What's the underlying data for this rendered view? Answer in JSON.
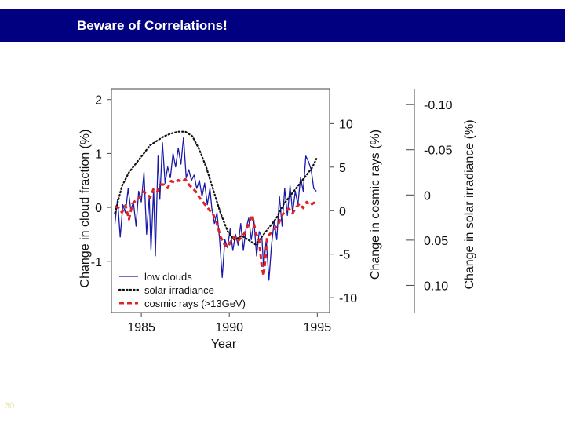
{
  "slide": {
    "title": "Beware of Correlations!",
    "page_number": "30",
    "title_bar_color": "#000080"
  },
  "chart_data": {
    "type": "line",
    "xlabel": "Year",
    "xlim": [
      1983.3,
      1995.7
    ],
    "x_ticks": [
      1985,
      1990,
      1995
    ],
    "axes": {
      "left": {
        "label": "Change in cloud fraction (%)",
        "lim": [
          -1.95,
          2.2
        ],
        "ticks": [
          {
            "value": 2,
            "label": "2"
          },
          {
            "value": 1,
            "label": "1"
          },
          {
            "value": 0,
            "label": "0"
          },
          {
            "value": -1,
            "label": "-1"
          }
        ]
      },
      "right": {
        "label": "Change in cosmic rays (%)",
        "lim": [
          -11.7,
          14.0
        ],
        "ticks": [
          {
            "value": 10,
            "label": "10"
          },
          {
            "value": 5,
            "label": "5"
          },
          {
            "value": 0,
            "label": "0"
          },
          {
            "value": -5,
            "label": "-5"
          },
          {
            "value": -10,
            "label": "-10"
          }
        ]
      },
      "far_right": {
        "label": "Change in solar irradiance (%)",
        "lim": [
          -0.1175,
          0.13
        ],
        "ticks": [
          {
            "value": -0.1,
            "label": "-0.10"
          },
          {
            "value": -0.05,
            "label": "-0.05"
          },
          {
            "value": 0,
            "label": "0"
          },
          {
            "value": 0.05,
            "label": "0.05"
          },
          {
            "value": 0.1,
            "label": "0.10"
          }
        ],
        "inverted": true
      }
    },
    "legend": {
      "position": "bottom-left",
      "entries": [
        "low clouds",
        "solar irradiance",
        "cosmic rays (>13GeV)"
      ]
    },
    "grid": false,
    "series": [
      {
        "name": "low clouds",
        "axis": "left",
        "color": "#1a1aaa",
        "style": "solid",
        "points": [
          [
            1983.5,
            -0.3
          ],
          [
            1983.65,
            0.15
          ],
          [
            1983.8,
            -0.55
          ],
          [
            1983.95,
            0.05
          ],
          [
            1984.1,
            -0.1
          ],
          [
            1984.25,
            0.35
          ],
          [
            1984.4,
            -0.05
          ],
          [
            1984.55,
            0.1
          ],
          [
            1984.7,
            -0.35
          ],
          [
            1984.85,
            0.3
          ],
          [
            1985.0,
            0.1
          ],
          [
            1985.15,
            0.65
          ],
          [
            1985.3,
            -0.5
          ],
          [
            1985.45,
            0.2
          ],
          [
            1985.55,
            -0.8
          ],
          [
            1985.7,
            0.35
          ],
          [
            1985.8,
            -0.9
          ],
          [
            1985.95,
            0.95
          ],
          [
            1986.05,
            0.15
          ],
          [
            1986.2,
            1.2
          ],
          [
            1986.35,
            0.45
          ],
          [
            1986.5,
            0.75
          ],
          [
            1986.65,
            0.55
          ],
          [
            1986.8,
            1.0
          ],
          [
            1986.95,
            0.75
          ],
          [
            1987.1,
            1.1
          ],
          [
            1987.25,
            0.8
          ],
          [
            1987.4,
            1.3
          ],
          [
            1987.55,
            0.55
          ],
          [
            1987.7,
            0.7
          ],
          [
            1987.85,
            0.5
          ],
          [
            1988.0,
            0.6
          ],
          [
            1988.15,
            0.35
          ],
          [
            1988.3,
            0.5
          ],
          [
            1988.45,
            0.2
          ],
          [
            1988.6,
            0.45
          ],
          [
            1988.75,
            0.05
          ],
          [
            1988.9,
            0.35
          ],
          [
            1989.0,
            0.0
          ],
          [
            1989.15,
            -0.3
          ],
          [
            1989.3,
            -0.1
          ],
          [
            1989.45,
            -0.6
          ],
          [
            1989.6,
            -1.3
          ],
          [
            1989.75,
            -0.6
          ],
          [
            1989.9,
            -0.75
          ],
          [
            1990.05,
            -0.4
          ],
          [
            1990.2,
            -0.8
          ],
          [
            1990.35,
            -0.5
          ],
          [
            1990.5,
            -0.7
          ],
          [
            1990.65,
            -0.3
          ],
          [
            1990.8,
            -0.8
          ],
          [
            1990.95,
            -0.4
          ],
          [
            1991.1,
            -0.2
          ],
          [
            1991.25,
            -0.6
          ],
          [
            1991.4,
            -0.25
          ],
          [
            1991.55,
            -0.9
          ],
          [
            1991.7,
            -0.45
          ],
          [
            1991.85,
            -0.55
          ],
          [
            1991.95,
            -1.1
          ],
          [
            1992.1,
            -0.6
          ],
          [
            1992.25,
            -1.35
          ],
          [
            1992.4,
            -0.7
          ],
          [
            1992.55,
            -0.25
          ],
          [
            1992.7,
            -0.6
          ],
          [
            1992.85,
            0.2
          ],
          [
            1993.0,
            -0.35
          ],
          [
            1993.15,
            0.35
          ],
          [
            1993.3,
            -0.15
          ],
          [
            1993.45,
            0.4
          ],
          [
            1993.6,
            -0.1
          ],
          [
            1993.75,
            0.3
          ],
          [
            1993.9,
            0.05
          ],
          [
            1994.05,
            0.55
          ],
          [
            1994.2,
            0.3
          ],
          [
            1994.35,
            0.95
          ],
          [
            1994.5,
            0.85
          ],
          [
            1994.65,
            0.7
          ],
          [
            1994.8,
            0.35
          ],
          [
            1994.95,
            0.3
          ]
        ]
      },
      {
        "name": "solar irradiance",
        "axis": "far_right",
        "color": "#111111",
        "style": "dotted",
        "points": [
          [
            1983.5,
            0.02
          ],
          [
            1983.9,
            -0.01
          ],
          [
            1984.3,
            -0.025
          ],
          [
            1984.7,
            -0.035
          ],
          [
            1985.1,
            -0.045
          ],
          [
            1985.5,
            -0.055
          ],
          [
            1985.9,
            -0.06
          ],
          [
            1986.3,
            -0.065
          ],
          [
            1986.7,
            -0.068
          ],
          [
            1987.1,
            -0.07
          ],
          [
            1987.5,
            -0.07
          ],
          [
            1987.9,
            -0.065
          ],
          [
            1988.3,
            -0.05
          ],
          [
            1988.7,
            -0.03
          ],
          [
            1989.1,
            -0.005
          ],
          [
            1989.5,
            0.02
          ],
          [
            1989.9,
            0.04
          ],
          [
            1990.3,
            0.05
          ],
          [
            1990.7,
            0.045
          ],
          [
            1991.1,
            0.05
          ],
          [
            1991.5,
            0.055
          ],
          [
            1991.9,
            0.045
          ],
          [
            1992.3,
            0.035
          ],
          [
            1992.7,
            0.025
          ],
          [
            1993.1,
            0.01
          ],
          [
            1993.5,
            0.0
          ],
          [
            1993.9,
            -0.01
          ],
          [
            1994.3,
            -0.02
          ],
          [
            1994.7,
            -0.03
          ],
          [
            1994.95,
            -0.04
          ]
        ]
      },
      {
        "name": "cosmic rays (>13GeV)",
        "axis": "right",
        "color": "#dd2222",
        "style": "dashed",
        "points": [
          [
            1983.5,
            0.5
          ],
          [
            1983.7,
            0.3
          ],
          [
            1983.9,
            -0.2
          ],
          [
            1984.1,
            0.6
          ],
          [
            1984.3,
            -1.0
          ],
          [
            1984.5,
            0.8
          ],
          [
            1984.7,
            1.2
          ],
          [
            1984.9,
            1.5
          ],
          [
            1985.1,
            2.2
          ],
          [
            1985.3,
            2.0
          ],
          [
            1985.5,
            1.5
          ],
          [
            1985.7,
            2.5
          ],
          [
            1985.9,
            2.2
          ],
          [
            1986.1,
            3.0
          ],
          [
            1986.3,
            3.0
          ],
          [
            1986.5,
            2.6
          ],
          [
            1986.7,
            3.4
          ],
          [
            1986.9,
            3.2
          ],
          [
            1987.1,
            3.5
          ],
          [
            1987.3,
            3.3
          ],
          [
            1987.5,
            3.6
          ],
          [
            1987.7,
            3.0
          ],
          [
            1987.9,
            2.6
          ],
          [
            1988.1,
            2.2
          ],
          [
            1988.3,
            1.5
          ],
          [
            1988.5,
            1.0
          ],
          [
            1988.7,
            0.5
          ],
          [
            1988.9,
            0.0
          ],
          [
            1989.1,
            -0.5
          ],
          [
            1989.3,
            -1.5
          ],
          [
            1989.5,
            -3.0
          ],
          [
            1989.7,
            -3.8
          ],
          [
            1989.9,
            -4.2
          ],
          [
            1990.1,
            -3.5
          ],
          [
            1990.3,
            -3.0
          ],
          [
            1990.5,
            -3.5
          ],
          [
            1990.7,
            -3.0
          ],
          [
            1990.9,
            -2.5
          ],
          [
            1991.1,
            -1.5
          ],
          [
            1991.3,
            -0.5
          ],
          [
            1991.5,
            -2.5
          ],
          [
            1991.7,
            -3.5
          ],
          [
            1991.85,
            -6.5
          ],
          [
            1991.95,
            -7.5
          ],
          [
            1992.05,
            -5.5
          ],
          [
            1992.15,
            -3.0
          ],
          [
            1992.4,
            -2.5
          ],
          [
            1992.6,
            -2.0
          ],
          [
            1992.8,
            -1.5
          ],
          [
            1993.0,
            -0.5
          ],
          [
            1993.2,
            0.0
          ],
          [
            1993.4,
            0.2
          ],
          [
            1993.6,
            -0.3
          ],
          [
            1993.8,
            0.4
          ],
          [
            1994.0,
            0.8
          ],
          [
            1994.2,
            0.3
          ],
          [
            1994.4,
            1.0
          ],
          [
            1994.6,
            0.6
          ],
          [
            1994.8,
            0.9
          ],
          [
            1994.95,
            0.9
          ]
        ]
      }
    ]
  }
}
